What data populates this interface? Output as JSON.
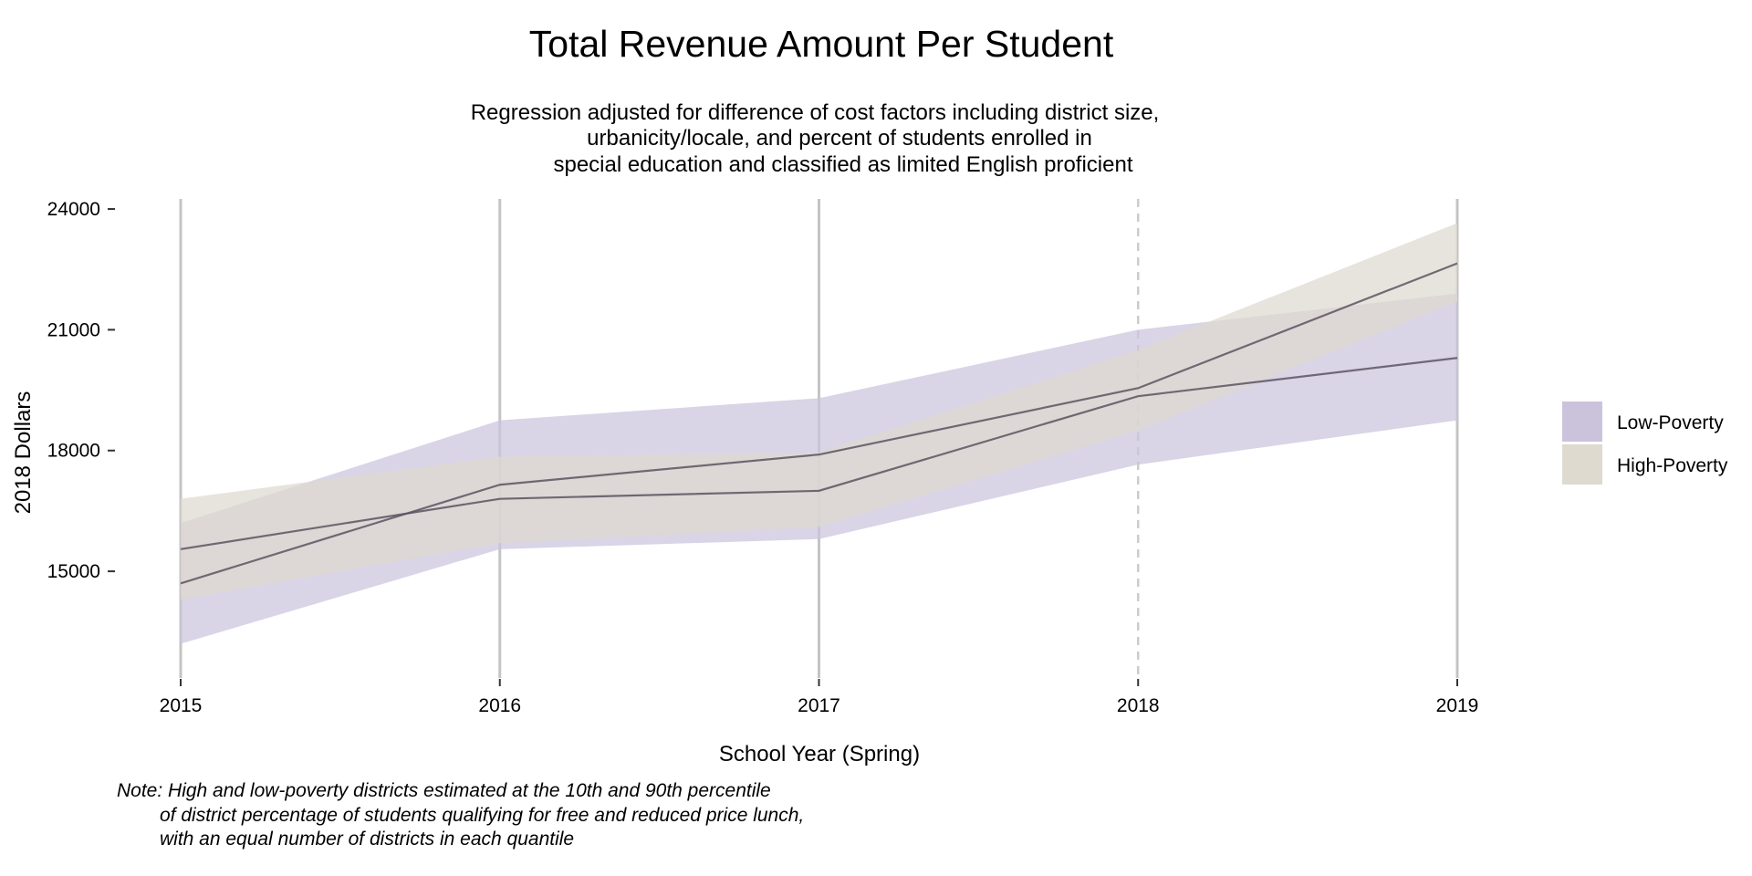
{
  "chart_data": {
    "type": "area",
    "title": "Total Revenue Amount Per Student",
    "subtitle": [
      "Regression adjusted for difference of cost factors including district size,",
      "urbanicity/locale, and percent of students enrolled in",
      "special education and classified as limited English proficient"
    ],
    "xlabel": "School Year (Spring)",
    "ylabel": "2018 Dollars",
    "x": [
      2015,
      2016,
      2017,
      2018,
      2019
    ],
    "x_ticks": [
      "2015",
      "2016",
      "2017",
      "2018",
      "2019"
    ],
    "y_ticks": [
      "15000",
      "18000",
      "21000",
      "24000"
    ],
    "ylim": [
      12350,
      24250
    ],
    "dashed_reference_x": 2018,
    "legend_position": "right",
    "series": [
      {
        "name": "Low-Poverty",
        "color": "#cbc3dc",
        "mean": [
          15550,
          16800,
          17000,
          19350,
          20300
        ],
        "lower": [
          13200,
          15550,
          15800,
          17650,
          18750
        ],
        "upper": [
          16200,
          18750,
          19300,
          21000,
          21900
        ]
      },
      {
        "name": "High-Poverty",
        "color": "#dedad0",
        "mean": [
          14700,
          17150,
          17900,
          19550,
          22650
        ],
        "lower": [
          14300,
          15700,
          16100,
          18500,
          21700
        ],
        "upper": [
          16800,
          17850,
          17950,
          20500,
          23650
        ]
      }
    ],
    "note": [
      "Note: High and low-poverty districts estimated at the 10th and 90th percentile",
      "of district percentage of students qualifying for free and reduced price lunch,",
      "with an equal number of districts in each quantile"
    ]
  }
}
